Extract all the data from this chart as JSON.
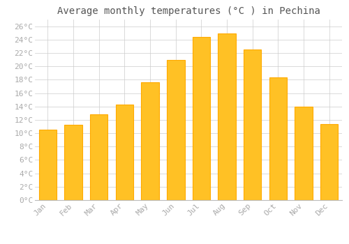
{
  "title": "Average monthly temperatures (°C ) in Pechina",
  "months": [
    "Jan",
    "Feb",
    "Mar",
    "Apr",
    "May",
    "Jun",
    "Jul",
    "Aug",
    "Sep",
    "Oct",
    "Nov",
    "Dec"
  ],
  "values": [
    10.5,
    11.3,
    12.8,
    14.3,
    17.6,
    21.0,
    24.4,
    24.9,
    22.5,
    18.3,
    14.0,
    11.4
  ],
  "bar_color": "#FFC125",
  "bar_edge_color": "#FFAA00",
  "background_color": "#FFFFFF",
  "grid_color": "#CCCCCC",
  "ylim": [
    0,
    27
  ],
  "yticks": [
    0,
    2,
    4,
    6,
    8,
    10,
    12,
    14,
    16,
    18,
    20,
    22,
    24,
    26
  ],
  "title_fontsize": 10,
  "tick_fontsize": 8,
  "tick_font_color": "#AAAAAA",
  "title_color": "#555555"
}
